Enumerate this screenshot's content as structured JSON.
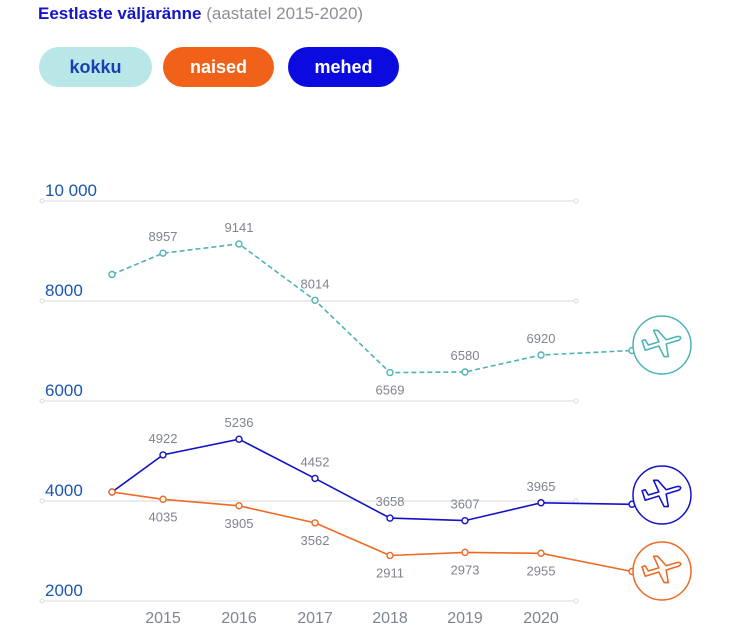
{
  "title": {
    "main": "Eestlaste väljaränne",
    "sub": " (aastatel 2015-2020)"
  },
  "filters": [
    {
      "label": "kokku"
    },
    {
      "label": "naised"
    },
    {
      "label": "mehed"
    }
  ],
  "colors": {
    "kokku": "#4fb3b3",
    "naised": "#ee6a24",
    "mehed": "#1212c8",
    "axis_label": "#1a55b0",
    "year_label": "#7d8590",
    "value_label": "#7d8590",
    "grid": "#d8dadd"
  },
  "icons": [
    "plane-icon",
    "plane-icon",
    "plane-icon"
  ],
  "chart_data": {
    "type": "line",
    "y_ticks": [
      {
        "value": 10000,
        "label": "10 000"
      },
      {
        "value": 8000,
        "label": "8000"
      },
      {
        "value": 6000,
        "label": "6000"
      },
      {
        "value": 4000,
        "label": "4000"
      },
      {
        "value": 2000,
        "label": "2000"
      }
    ],
    "x_ticks": [
      "2015",
      "2016",
      "2017",
      "2018",
      "2019",
      "2020"
    ],
    "ylim": [
      2000,
      10000
    ],
    "grid": true,
    "series": [
      {
        "name": "kokku",
        "values": [
          8957,
          9141,
          8014,
          6569,
          6580,
          6920
        ],
        "labels": [
          "8957",
          "9141",
          "8014",
          "6569",
          "6580",
          "6920"
        ],
        "style": "dashed"
      },
      {
        "name": "mehed",
        "values": [
          4922,
          5236,
          4452,
          3658,
          3607,
          3965
        ],
        "labels": [
          "4922",
          "5236",
          "4452",
          "3658",
          "3607",
          "3965"
        ],
        "style": "solid"
      },
      {
        "name": "naised",
        "values": [
          4035,
          3905,
          3562,
          2911,
          2973,
          2955
        ],
        "labels": [
          "4035",
          "3905",
          "3562",
          "2911",
          "2973",
          "2955"
        ],
        "style": "solid"
      }
    ]
  }
}
